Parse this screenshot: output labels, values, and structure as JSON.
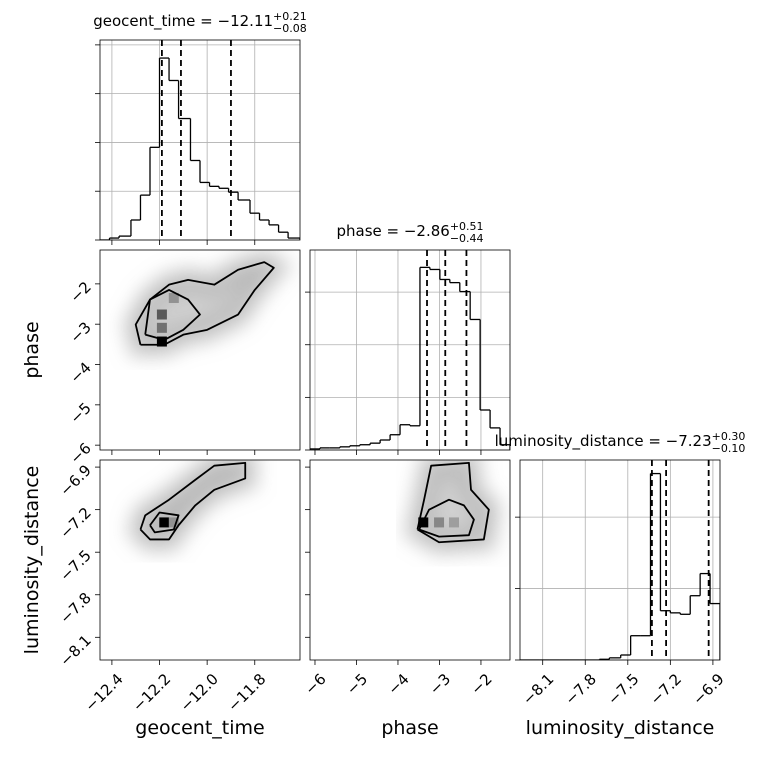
{
  "chart_data": [
    {
      "type": "histogram",
      "title": "geocent_time = −12.11",
      "title_sup": "+0.21",
      "title_sub": "−0.08",
      "bins": [
        -12.45,
        -12.41,
        -12.37,
        -12.32,
        -12.28,
        -12.24,
        -12.2,
        -12.16,
        -12.12,
        -12.07,
        -12.03,
        -11.99,
        -11.95,
        -11.91,
        -11.87,
        -11.82,
        -11.78,
        -11.74,
        -11.7,
        -11.66,
        -11.61
      ],
      "values": [
        0,
        0.04,
        0.08,
        0.41,
        0.92,
        1.9,
        3.73,
        3.27,
        2.49,
        1.63,
        1.18,
        1.1,
        1.06,
        0.98,
        0.82,
        0.55,
        0.41,
        0.31,
        0.16,
        0.04
      ],
      "quantiles": [
        -12.19,
        -12.11,
        -11.9
      ],
      "xlim": [
        -12.45,
        -11.61
      ],
      "ylim": [
        0,
        4.1
      ],
      "xticks": [
        -12.4,
        -12.2,
        -12.0,
        -11.8
      ],
      "yticks": [
        0,
        1,
        2,
        3,
        4
      ],
      "tick_labels": {
        "x": false,
        "y": false
      },
      "grid": true,
      "color": "#000000"
    },
    {
      "type": "contour",
      "ylabel": "phase",
      "xlim": [
        -12.45,
        -11.61
      ],
      "ylim": [
        -6.12,
        -1.16
      ],
      "xticks": [
        -12.4,
        -12.2,
        -12.0,
        -11.8
      ],
      "yticks": [
        {
          "value": -6,
          "label": "−6"
        },
        {
          "value": -5,
          "label": "−5"
        },
        {
          "value": -4,
          "label": "−4"
        },
        {
          "value": -3,
          "label": "−3"
        },
        {
          "value": -2,
          "label": "−2"
        }
      ],
      "tick_labels": {
        "x": false,
        "y": true
      },
      "contours": [
        {
          "x": [
            -12.28,
            -12.3,
            -12.24,
            -12.16,
            -12.08,
            -11.97,
            -11.87,
            -11.76,
            -11.72,
            -11.8,
            -11.87,
            -12.0,
            -12.1,
            -12.18,
            -12.28
          ],
          "y": [
            -3.51,
            -3.01,
            -2.39,
            -2.02,
            -1.9,
            -2.02,
            -1.65,
            -1.46,
            -1.6,
            -2.15,
            -2.76,
            -3.14,
            -3.26,
            -3.51,
            -3.51
          ]
        },
        {
          "x": [
            -12.26,
            -12.24,
            -12.16,
            -12.08,
            -12.03,
            -12.1,
            -12.18,
            -12.26
          ],
          "y": [
            -3.26,
            -2.39,
            -2.15,
            -2.39,
            -2.76,
            -3.14,
            -3.39,
            -3.26
          ]
        }
      ],
      "cells": {
        "x": [
          -12.19,
          -12.19,
          -12.19,
          -12.14
        ],
        "y": [
          -3.43,
          -3.09,
          -2.76,
          -2.35
        ],
        "value": [
          1,
          0.5,
          0.6,
          0.35
        ]
      },
      "color": "#000000"
    },
    {
      "type": "histogram",
      "title": "phase = −2.86",
      "title_sup": "+0.51",
      "title_sub": "−0.44",
      "bins": [
        -6.12,
        -5.88,
        -5.64,
        -5.4,
        -5.16,
        -4.92,
        -4.67,
        -4.43,
        -4.19,
        -3.95,
        -3.71,
        -3.47,
        -3.23,
        -2.99,
        -2.75,
        -2.51,
        -2.26,
        -2.02,
        -1.78,
        -1.54,
        -1.3
      ],
      "values": [
        0.02,
        0.04,
        0.04,
        0.06,
        0.08,
        0.1,
        0.13,
        0.19,
        0.29,
        0.48,
        0.46,
        3.47,
        3.43,
        3.24,
        3.18,
        3.01,
        2.48,
        0.76,
        0.42,
        0.1
      ],
      "quantiles": [
        -3.3,
        -2.86,
        -2.35
      ],
      "xlim": [
        -6.12,
        -1.3
      ],
      "ylim": [
        0,
        3.8
      ],
      "xticks": [
        -6,
        -5,
        -4,
        -3,
        -2
      ],
      "yticks": [
        0,
        1,
        2,
        3
      ],
      "tick_labels": {
        "x": false,
        "y": false
      },
      "grid": true,
      "color": "#000000"
    },
    {
      "type": "contour",
      "xlabel": "geocent_time",
      "ylabel": "luminosity_distance",
      "xlim": [
        -12.45,
        -11.61
      ],
      "ylim": [
        -8.26,
        -6.85
      ],
      "xticks": [
        {
          "value": -12.4,
          "label": "−12.4"
        },
        {
          "value": -12.2,
          "label": "−12.2"
        },
        {
          "value": -12.0,
          "label": "−12.0"
        },
        {
          "value": -11.8,
          "label": "−11.8"
        }
      ],
      "yticks": [
        {
          "value": -8.1,
          "label": "−8.1"
        },
        {
          "value": -7.8,
          "label": "−7.8"
        },
        {
          "value": -7.5,
          "label": "−7.5"
        },
        {
          "value": -7.2,
          "label": "−7.2"
        },
        {
          "value": -6.9,
          "label": "−6.9"
        }
      ],
      "tick_labels": {
        "x": true,
        "y": true
      },
      "contours": [
        {
          "x": [
            -12.28,
            -12.26,
            -12.16,
            -12.05,
            -11.97,
            -11.84,
            -11.84,
            -11.97,
            -12.05,
            -12.12,
            -12.16,
            -12.24,
            -12.28
          ],
          "y": [
            -7.34,
            -7.24,
            -7.13,
            -6.99,
            -6.89,
            -6.87,
            -6.98,
            -7.06,
            -7.17,
            -7.31,
            -7.41,
            -7.41,
            -7.34
          ]
        },
        {
          "x": [
            -12.24,
            -12.2,
            -12.12,
            -12.14,
            -12.22,
            -12.24
          ],
          "y": [
            -7.31,
            -7.22,
            -7.24,
            -7.34,
            -7.36,
            -7.31
          ]
        }
      ],
      "cells": {
        "x": [
          -12.18,
          -12.14
        ],
        "y": [
          -7.29,
          -7.29
        ],
        "value": [
          1,
          0.35
        ]
      },
      "color": "#000000"
    },
    {
      "type": "contour",
      "xlabel": "phase",
      "xlim": [
        -6.12,
        -1.3
      ],
      "ylim": [
        -8.26,
        -6.85
      ],
      "xticks": [
        {
          "value": -6,
          "label": "−6"
        },
        {
          "value": -5,
          "label": "−5"
        },
        {
          "value": -4,
          "label": "−4"
        },
        {
          "value": -3,
          "label": "−3"
        },
        {
          "value": -2,
          "label": "−2"
        }
      ],
      "yticks": [
        -8.1,
        -7.8,
        -7.5,
        -7.2,
        -6.9
      ],
      "tick_labels": {
        "x": true,
        "y": false
      },
      "contours": [
        {
          "x": [
            -3.53,
            -3.37,
            -3.2,
            -2.29,
            -2.24,
            -1.81,
            -1.93,
            -3.01,
            -3.53
          ],
          "y": [
            -7.34,
            -7.13,
            -6.89,
            -6.87,
            -7.06,
            -7.2,
            -7.41,
            -7.43,
            -7.34
          ]
        },
        {
          "x": [
            -3.49,
            -3.25,
            -2.77,
            -2.41,
            -2.17,
            -2.29,
            -3.01,
            -3.49
          ],
          "y": [
            -7.34,
            -7.2,
            -7.13,
            -7.17,
            -7.27,
            -7.38,
            -7.39,
            -7.34
          ]
        }
      ],
      "cells": {
        "x": [
          -3.39,
          -3.01,
          -2.65
        ],
        "y": [
          -7.29,
          -7.29,
          -7.29
        ],
        "value": [
          1,
          0.4,
          0.3
        ]
      },
      "color": "#000000"
    },
    {
      "type": "histogram",
      "title": "luminosity_distance = −7.23",
      "title_sup": "+0.30",
      "title_sub": "−0.10",
      "xlabel": "luminosity_distance",
      "bins": [
        -8.26,
        -8.19,
        -8.12,
        -8.05,
        -7.98,
        -7.91,
        -7.84,
        -7.77,
        -7.7,
        -7.63,
        -7.55,
        -7.48,
        -7.41,
        -7.34,
        -7.27,
        -7.2,
        -7.13,
        -7.06,
        -6.99,
        -6.92,
        -6.85
      ],
      "values": [
        0,
        0,
        0,
        0,
        0,
        0,
        0,
        0,
        0.01,
        0.03,
        0.07,
        0.34,
        0.34,
        2.61,
        0.69,
        0.66,
        0.64,
        0.9,
        1.21,
        0.79
      ],
      "quantiles": [
        -7.33,
        -7.23,
        -6.93
      ],
      "xlim": [
        -8.26,
        -6.85
      ],
      "ylim": [
        0,
        2.8
      ],
      "xticks": [
        {
          "value": -8.1,
          "label": "−8.1"
        },
        {
          "value": -7.8,
          "label": "−7.8"
        },
        {
          "value": -7.5,
          "label": "−7.5"
        },
        {
          "value": -7.2,
          "label": "−7.2"
        },
        {
          "value": -6.9,
          "label": "−6.9"
        }
      ],
      "yticks": [
        0,
        1,
        2
      ],
      "tick_labels": {
        "x": true,
        "y": false
      },
      "grid": true,
      "color": "#000000"
    }
  ]
}
